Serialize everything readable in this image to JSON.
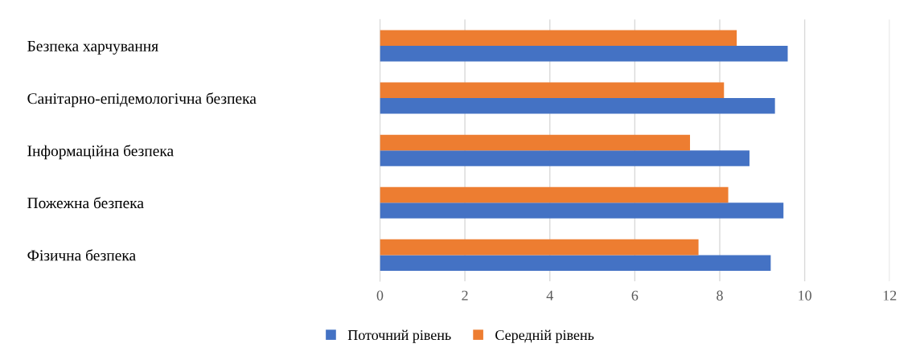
{
  "chart_data": {
    "type": "bar",
    "orientation": "horizontal",
    "categories": [
      "Безпека харчування",
      "Санітарно-епідемологічна безпека",
      "Інформаційна безпека",
      "Пожежна безпека",
      "Фізична безпека"
    ],
    "series": [
      {
        "name": "Поточний рівень",
        "color": "#4472c4",
        "values": [
          9.6,
          9.3,
          8.7,
          9.5,
          9.2
        ]
      },
      {
        "name": "Середній рівень",
        "color": "#ed7d31",
        "values": [
          8.4,
          8.1,
          7.3,
          8.2,
          7.5
        ]
      }
    ],
    "xlim": [
      0,
      12
    ],
    "xticks": [
      0,
      2,
      4,
      6,
      8,
      10,
      12
    ],
    "grid": "x",
    "legend": "bottom"
  }
}
